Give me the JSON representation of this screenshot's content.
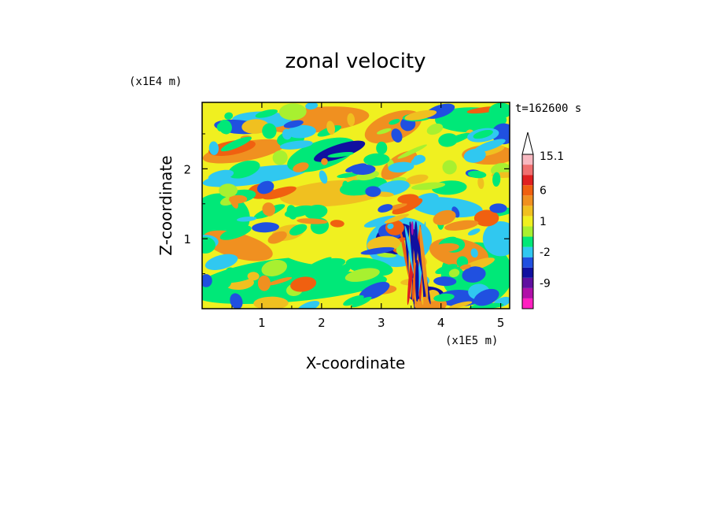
{
  "chart_data": {
    "type": "heatmap",
    "title": "zonal velocity",
    "xlabel": "X-coordinate",
    "ylabel": "Z-coordinate",
    "x_scale_label": "(x1E5 m)",
    "y_scale_label": "(x1E4 m)",
    "time_label": "t=162600 s",
    "xlim": [
      0,
      5.15
    ],
    "ylim": [
      0,
      2.95
    ],
    "xticks": [
      1,
      2,
      3,
      4,
      5
    ],
    "xtick_labels": [
      "1",
      "2",
      "3",
      "4",
      "5"
    ],
    "yticks": [
      1,
      2
    ],
    "ytick_labels": [
      "1",
      "2"
    ],
    "colorbar": {
      "levels": [
        -15,
        -12,
        -9,
        -6,
        -4,
        -2,
        -1,
        0,
        1,
        2,
        4,
        6,
        9,
        12,
        15.1
      ],
      "colors": [
        "#ff20c0",
        "#b010a8",
        "#6010a0",
        "#1010a0",
        "#2050e0",
        "#30c8f0",
        "#00e878",
        "#a8f030",
        "#f0f020",
        "#f0c020",
        "#f09020",
        "#f06010",
        "#e02020",
        "#f07070",
        "#f8b8c0"
      ],
      "labels": [
        "15.1",
        "6",
        "1",
        "-2",
        "-9"
      ],
      "label_values": [
        15.1,
        6,
        1,
        -2,
        -9
      ],
      "extend": "max"
    },
    "field_description": "Contour-filled zonal velocity field; weak positive values (yellow/green) dominate, with bands of positive (orange/red) and negative (blue/cyan) anomalies tilted across the domain, and a strong localized feature near x=3.5-3.7, z=0-1.3."
  }
}
